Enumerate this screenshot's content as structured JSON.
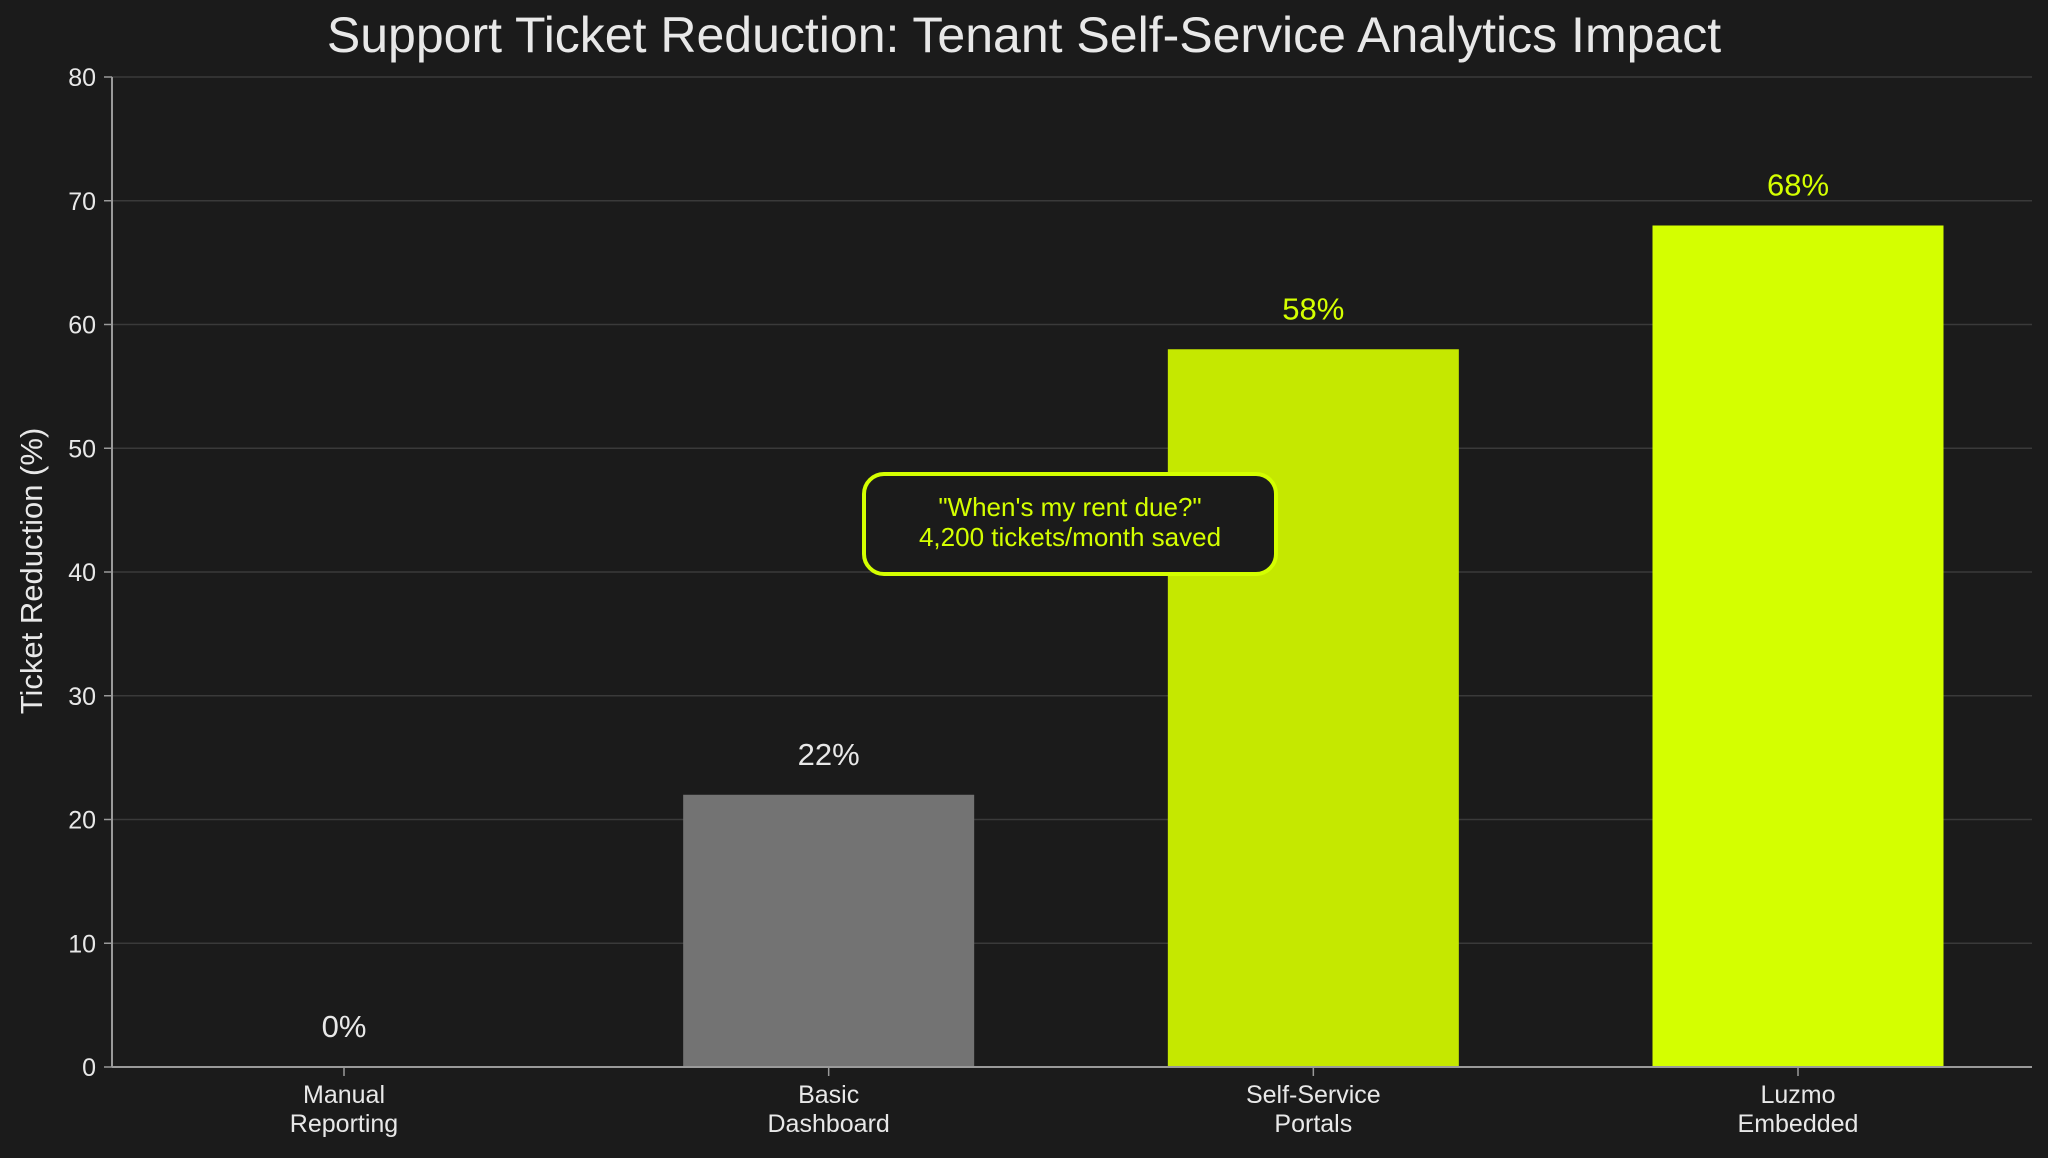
{
  "chart_data": {
    "type": "bar",
    "title": "Support Ticket Reduction: Tenant Self-Service Analytics Impact",
    "xlabel": "",
    "ylabel": "Ticket Reduction (%)",
    "ylim": [
      0,
      80
    ],
    "yticks": [
      0,
      10,
      20,
      30,
      40,
      50,
      60,
      70,
      80
    ],
    "grid": true,
    "categories": [
      [
        "Manual",
        "Reporting"
      ],
      [
        "Basic",
        "Dashboard"
      ],
      [
        "Self-Service",
        "Portals"
      ],
      [
        "Luzmo",
        "Embedded"
      ]
    ],
    "values": [
      0,
      22,
      58,
      68
    ],
    "value_labels": [
      "0%",
      "22%",
      "58%",
      "68%"
    ],
    "bar_colors": [
      "#1b1b1b",
      "#737373",
      "#c5e800",
      "#d4ff00"
    ],
    "value_label_colors": [
      "#e8e8e8",
      "#e8e8e8",
      "#d4ff00",
      "#d4ff00"
    ],
    "annotation": {
      "lines": [
        "\"When's my rent due?\"",
        "4,200 tickets/month saved"
      ],
      "color": "#d4ff00"
    }
  },
  "colors": {
    "background": "#1b1b1b",
    "text": "#e8e8e8",
    "grid": "#3a3a3a",
    "axis": "#9a9a9a",
    "accent": "#d4ff00"
  }
}
